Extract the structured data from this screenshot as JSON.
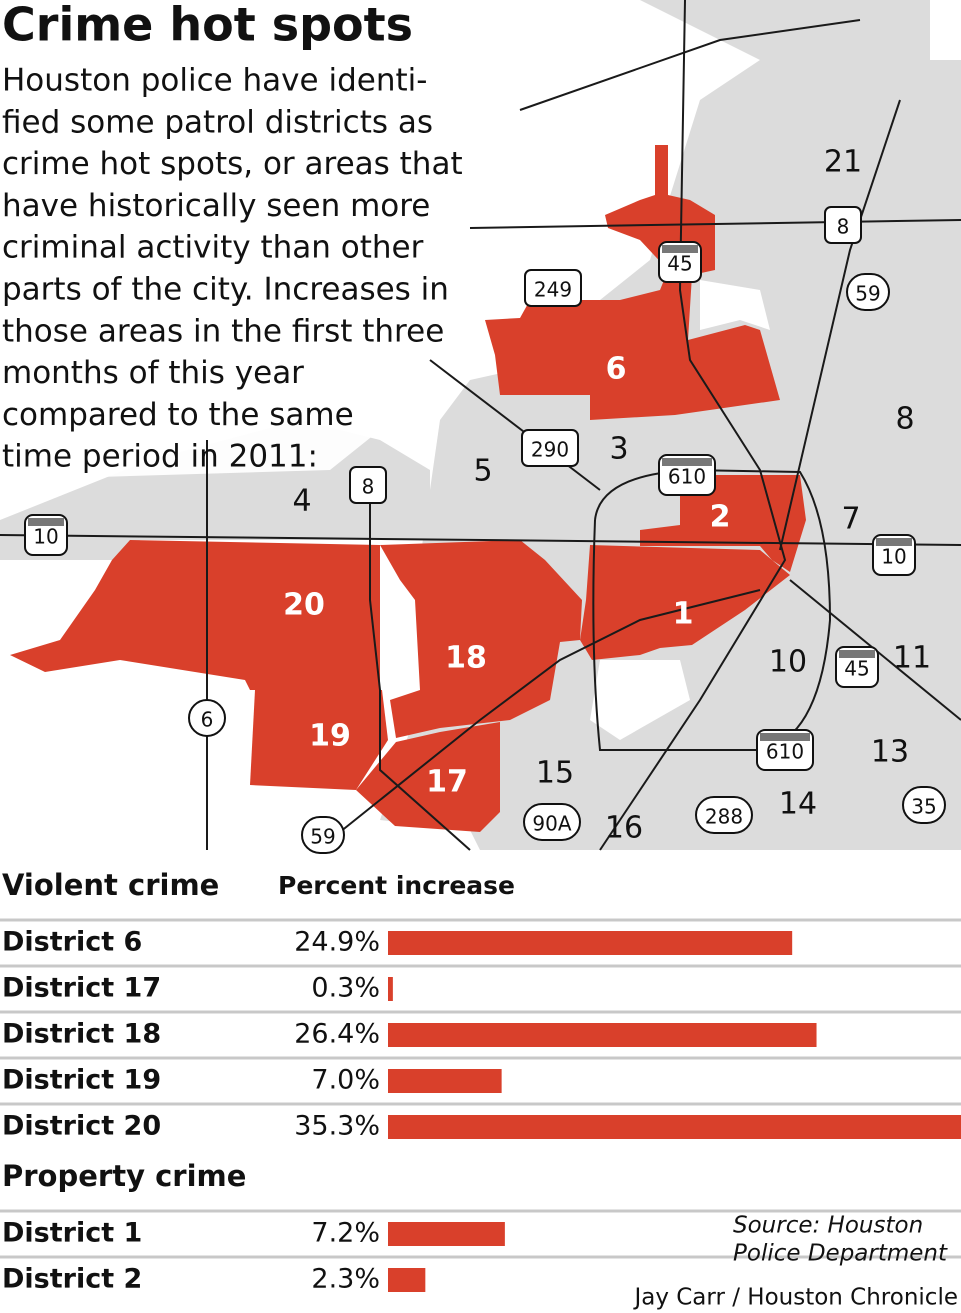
{
  "header": {
    "title": "Crime hot spots",
    "intro": [
      "Houston police have identi-",
      "fied some patrol districts as",
      "crime hot spots, or areas that",
      "have historically seen more",
      "criminal activity than other",
      "parts of the city. Increases in",
      "those areas in the first three",
      "months of this year",
      "compared to the same",
      "time period in 2011:"
    ]
  },
  "map": {
    "districts": [
      "21",
      "8",
      "6",
      "3",
      "5",
      "4",
      "2",
      "7",
      "20",
      "1",
      "18",
      "10",
      "11",
      "19",
      "17",
      "15",
      "16",
      "14",
      "13"
    ],
    "highways": [
      "8",
      "45",
      "249",
      "59",
      "290",
      "610",
      "8",
      "10",
      "10",
      "45",
      "610",
      "6",
      "90A",
      "288",
      "35",
      "59"
    ]
  },
  "chart_data": [
    {
      "type": "bar",
      "title": "Violent crime",
      "value_title": "Percent increase",
      "categories": [
        "District 6",
        "District 17",
        "District 18",
        "District 19",
        "District 20"
      ],
      "values": [
        24.9,
        0.3,
        26.4,
        7.0,
        35.3
      ],
      "value_labels": [
        "24.9%",
        "0.3%",
        "26.4%",
        "7.0%",
        "35.3%"
      ],
      "color": "#d9402b"
    },
    {
      "type": "bar",
      "title": "Property crime",
      "categories": [
        "District 1",
        "District 2"
      ],
      "values": [
        7.2,
        2.3
      ],
      "value_labels": [
        "7.2%",
        "2.3%"
      ],
      "color": "#d9402b"
    }
  ],
  "footer": {
    "source": [
      "Source: Houston",
      "Police Department"
    ],
    "credit": "Jay Carr / Houston Chronicle"
  }
}
